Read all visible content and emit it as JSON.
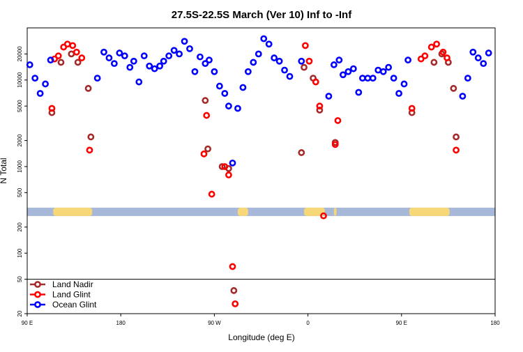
{
  "chart_data": {
    "type": "scatter",
    "title": "27.5S-22.5S March (Ver 10)   Inf to -Inf",
    "xlabel": "Longitude (deg E)",
    "ylabel": "N Total",
    "x_domain": [
      90,
      450
    ],
    "ylim": [
      20,
      40000
    ],
    "y_scale": "log",
    "x_ticks": [
      {
        "value": 90,
        "label": "90 E"
      },
      {
        "value": 162,
        "label": "180"
      },
      {
        "value": 234,
        "label": "90 W"
      },
      {
        "value": 306,
        "label": "0"
      },
      {
        "value": 378,
        "label": "90 E"
      },
      {
        "value": 450,
        "label": "180"
      }
    ],
    "y_ticks": [
      {
        "value": 20,
        "label": "20"
      },
      {
        "value": 50,
        "label": "50"
      },
      {
        "value": 100,
        "label": "100"
      },
      {
        "value": 200,
        "label": "200"
      },
      {
        "value": 500,
        "label": "500"
      },
      {
        "value": 1000,
        "label": "1000"
      },
      {
        "value": 2000,
        "label": "2000"
      },
      {
        "value": 5000,
        "label": "5000"
      },
      {
        "value": 10000,
        "label": "10000"
      },
      {
        "value": 20000,
        "label": "20000"
      }
    ],
    "legend_position": "bottom-left",
    "series": [
      {
        "name": "Land Nadir",
        "color": "#a52a2a",
        "points": [
          [
            109,
            4200
          ],
          [
            116,
            16000
          ],
          [
            124,
            20000
          ],
          [
            129,
            16000
          ],
          [
            137,
            8000
          ],
          [
            139,
            2200
          ],
          [
            227,
            5800
          ],
          [
            229,
            1600
          ],
          [
            240,
            1000
          ],
          [
            245,
            950
          ],
          [
            249,
            37
          ],
          [
            301,
            1450
          ],
          [
            303,
            14000
          ],
          [
            310,
            10500
          ],
          [
            315,
            4500
          ],
          [
            327,
            1900
          ],
          [
            386,
            4200
          ],
          [
            403,
            16000
          ],
          [
            409,
            20000
          ],
          [
            414,
            16000
          ],
          [
            418,
            8000
          ],
          [
            420,
            2200
          ]
        ]
      },
      {
        "name": "Land Glint",
        "color": "#ff0000",
        "points": [
          [
            109,
            4700
          ],
          [
            111,
            17500
          ],
          [
            114,
            19000
          ],
          [
            118,
            24000
          ],
          [
            121,
            26000
          ],
          [
            125,
            25000
          ],
          [
            128,
            21000
          ],
          [
            132,
            18000
          ],
          [
            138,
            1550
          ],
          [
            226,
            1400
          ],
          [
            228,
            3900
          ],
          [
            232,
            480
          ],
          [
            242,
            1000
          ],
          [
            245,
            800
          ],
          [
            248,
            70
          ],
          [
            250,
            26
          ],
          [
            304,
            25000
          ],
          [
            307,
            16500
          ],
          [
            312,
            9500
          ],
          [
            315,
            5000
          ],
          [
            318,
            270
          ],
          [
            327,
            1800
          ],
          [
            329,
            3400
          ],
          [
            386,
            4700
          ],
          [
            393,
            17500
          ],
          [
            396,
            19000
          ],
          [
            401,
            24000
          ],
          [
            405,
            26000
          ],
          [
            410,
            21000
          ],
          [
            413,
            18000
          ],
          [
            420,
            1550
          ]
        ]
      },
      {
        "name": "Ocean Glint",
        "color": "#0000ff",
        "points": [
          [
            92,
            15000
          ],
          [
            96,
            10500
          ],
          [
            100,
            7000
          ],
          [
            104,
            9000
          ],
          [
            108,
            17000
          ],
          [
            144,
            10500
          ],
          [
            149,
            21000
          ],
          [
            153,
            18000
          ],
          [
            157,
            15500
          ],
          [
            161,
            20500
          ],
          [
            165,
            19000
          ],
          [
            169,
            14000
          ],
          [
            172,
            16500
          ],
          [
            176,
            9500
          ],
          [
            180,
            19000
          ],
          [
            184,
            14500
          ],
          [
            188,
            13500
          ],
          [
            192,
            14500
          ],
          [
            195,
            16500
          ],
          [
            199,
            19000
          ],
          [
            203,
            22000
          ],
          [
            207,
            20000
          ],
          [
            211,
            28000
          ],
          [
            215,
            23000
          ],
          [
            219,
            12500
          ],
          [
            223,
            18500
          ],
          [
            227,
            15500
          ],
          [
            230,
            17000
          ],
          [
            234,
            12500
          ],
          [
            238,
            8500
          ],
          [
            242,
            7000
          ],
          [
            245,
            5000
          ],
          [
            248,
            1100
          ],
          [
            252,
            4700
          ],
          [
            256,
            8200
          ],
          [
            260,
            12500
          ],
          [
            264,
            16000
          ],
          [
            268,
            20000
          ],
          [
            272,
            30000
          ],
          [
            276,
            26000
          ],
          [
            280,
            18000
          ],
          [
            284,
            16500
          ],
          [
            288,
            13000
          ],
          [
            292,
            11000
          ],
          [
            301,
            16500
          ],
          [
            322,
            6500
          ],
          [
            326,
            15000
          ],
          [
            330,
            17000
          ],
          [
            333,
            11500
          ],
          [
            337,
            12500
          ],
          [
            341,
            13500
          ],
          [
            345,
            7200
          ],
          [
            348,
            10500
          ],
          [
            352,
            10500
          ],
          [
            356,
            10500
          ],
          [
            360,
            13000
          ],
          [
            364,
            12500
          ],
          [
            368,
            14000
          ],
          [
            372,
            10500
          ],
          [
            376,
            7000
          ],
          [
            380,
            9000
          ],
          [
            383,
            17000
          ],
          [
            425,
            6500
          ],
          [
            429,
            10500
          ],
          [
            433,
            21000
          ],
          [
            437,
            18000
          ],
          [
            441,
            15500
          ],
          [
            445,
            20500
          ]
        ]
      }
    ],
    "surface_bar": {
      "value": 300,
      "base_color": "#a8b8d8",
      "land_color": "#f7d878",
      "land_segments": [
        [
          110,
          140
        ],
        [
          252,
          260
        ],
        [
          303,
          319
        ],
        [
          326,
          328
        ],
        [
          384,
          415
        ]
      ]
    }
  }
}
